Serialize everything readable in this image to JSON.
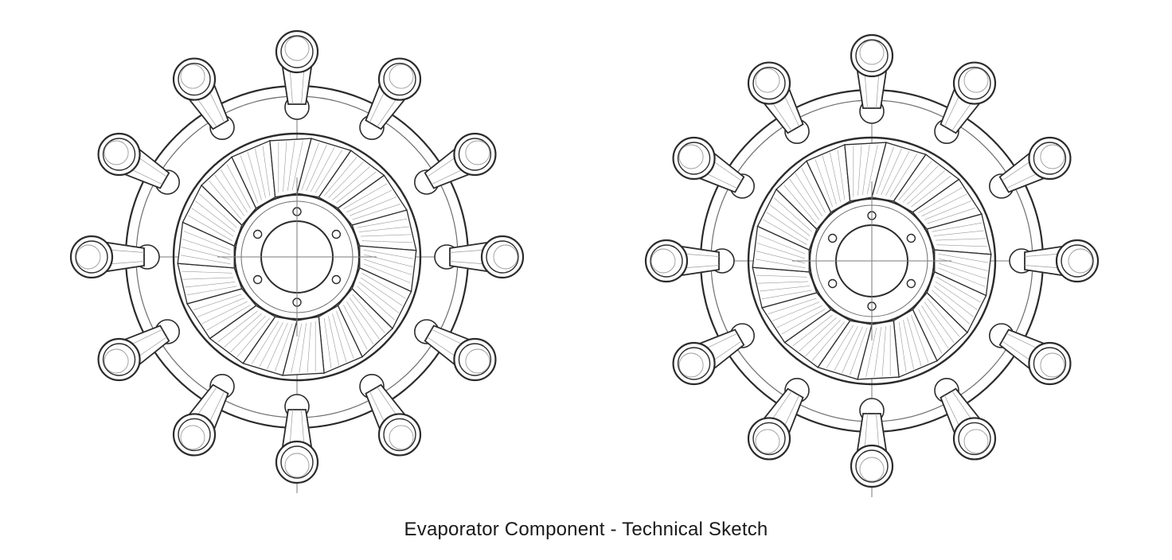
{
  "caption": "Evaporator Component - Technical Sketch",
  "colors": {
    "ink": "#2b2b2b",
    "hatch": "#9a9a9a",
    "background": "#ffffff"
  },
  "components": [
    {
      "name": "evaporator-left",
      "nozzle_count": 12,
      "blade_count": 18,
      "bolt_hole_count": 6
    },
    {
      "name": "evaporator-right",
      "nozzle_count": 12,
      "blade_count": 18,
      "bolt_hole_count": 6
    }
  ]
}
